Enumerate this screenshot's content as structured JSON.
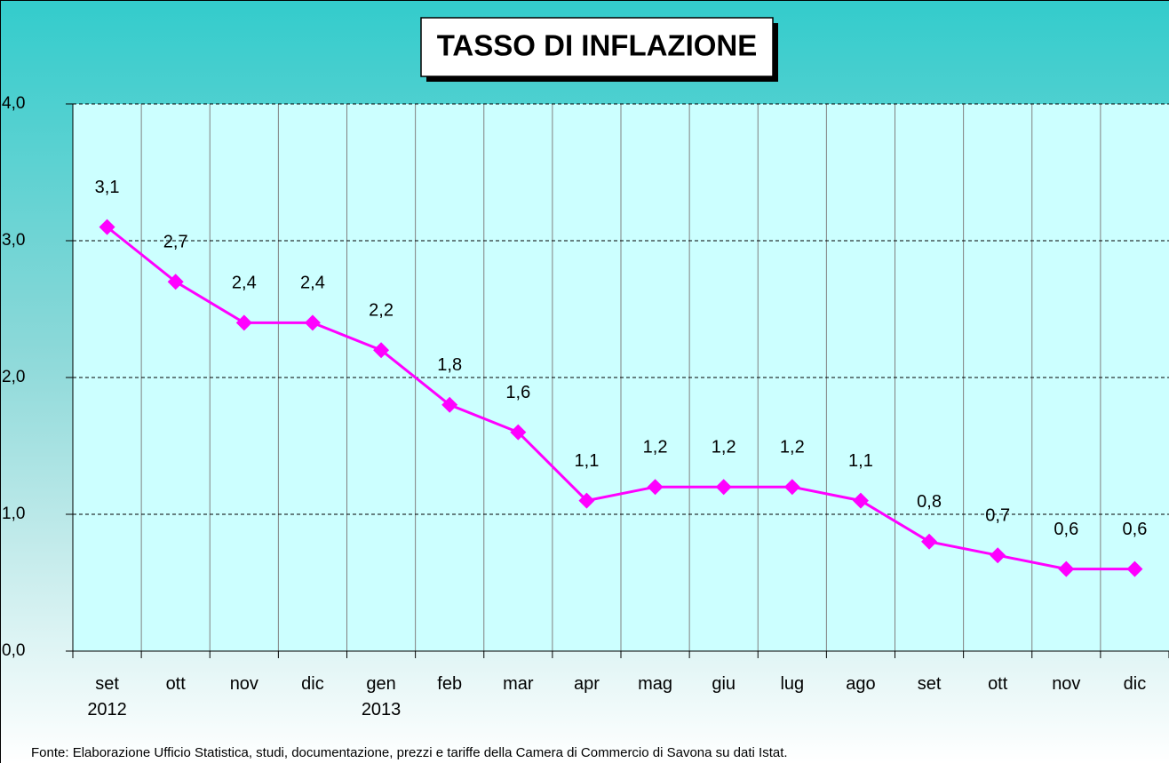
{
  "chart_data": {
    "type": "line",
    "title": "TASSO DI INFLAZIONE",
    "categories": [
      "set 2012",
      "ott",
      "nov",
      "dic",
      "gen 2013",
      "feb",
      "mar",
      "apr",
      "mag",
      "giu",
      "lug",
      "ago",
      "set",
      "ott",
      "nov",
      "dic"
    ],
    "values": [
      3.1,
      2.7,
      2.4,
      2.4,
      2.2,
      1.8,
      1.6,
      1.1,
      1.2,
      1.2,
      1.2,
      1.1,
      0.8,
      0.7,
      0.6,
      0.6
    ],
    "value_labels": [
      "3,1",
      "2,7",
      "2,4",
      "2,4",
      "2,2",
      "1,8",
      "1,6",
      "1,1",
      "1,2",
      "1,2",
      "1,2",
      "1,1",
      "0,8",
      "0,7",
      "0,6",
      "0,6"
    ],
    "color": "#ff00ff",
    "ylim": [
      0,
      4
    ],
    "yticks": [
      {
        "value": 0,
        "label": "0,0"
      },
      {
        "value": 1,
        "label": "1,0"
      },
      {
        "value": 2,
        "label": "2,0"
      },
      {
        "value": 3,
        "label": "3,0"
      },
      {
        "value": 4,
        "label": "4,0"
      }
    ],
    "grid": true,
    "source": "Fonte: Elaborazione Ufficio Statistica, studi, documentazione, prezzi  e tariffe della Camera di Commercio di Savona su dati Istat."
  }
}
